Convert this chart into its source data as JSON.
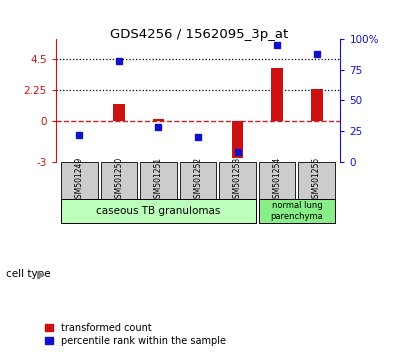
{
  "title": "GDS4256 / 1562095_3p_at",
  "samples": [
    "GSM501249",
    "GSM501250",
    "GSM501251",
    "GSM501252",
    "GSM501253",
    "GSM501254",
    "GSM501255"
  ],
  "transformed_count": [
    -0.05,
    1.2,
    0.1,
    -0.05,
    -2.7,
    3.85,
    2.3
  ],
  "percentile_rank": [
    22,
    82,
    28,
    20,
    8,
    95,
    88
  ],
  "left_ylim": [
    -3,
    6
  ],
  "right_ylim": [
    0,
    100
  ],
  "left_yticks": [
    -3,
    0,
    2.25,
    4.5
  ],
  "right_yticks": [
    0,
    25,
    50,
    75,
    100
  ],
  "left_ytick_labels": [
    "-3",
    "0",
    "2.25",
    "4.5"
  ],
  "right_ytick_labels": [
    "0",
    "25",
    "50",
    "75",
    "100%"
  ],
  "hlines": [
    4.5,
    2.25
  ],
  "bar_color": "#cc1111",
  "dot_color": "#1111cc",
  "zero_line_color": "#cc2222",
  "group1_samples": [
    0,
    1,
    2,
    3,
    4
  ],
  "group2_samples": [
    5,
    6
  ],
  "group1_label": "caseous TB granulomas",
  "group2_label": "normal lung\nparenchyma",
  "group1_color": "#bbffbb",
  "group2_color": "#88ee88",
  "sample_box_color": "#cccccc",
  "cell_type_label": "cell type",
  "legend1_label": "transformed count",
  "legend2_label": "percentile rank within the sample",
  "background_color": "#ffffff",
  "bar_width": 0.3,
  "dot_size": 5
}
